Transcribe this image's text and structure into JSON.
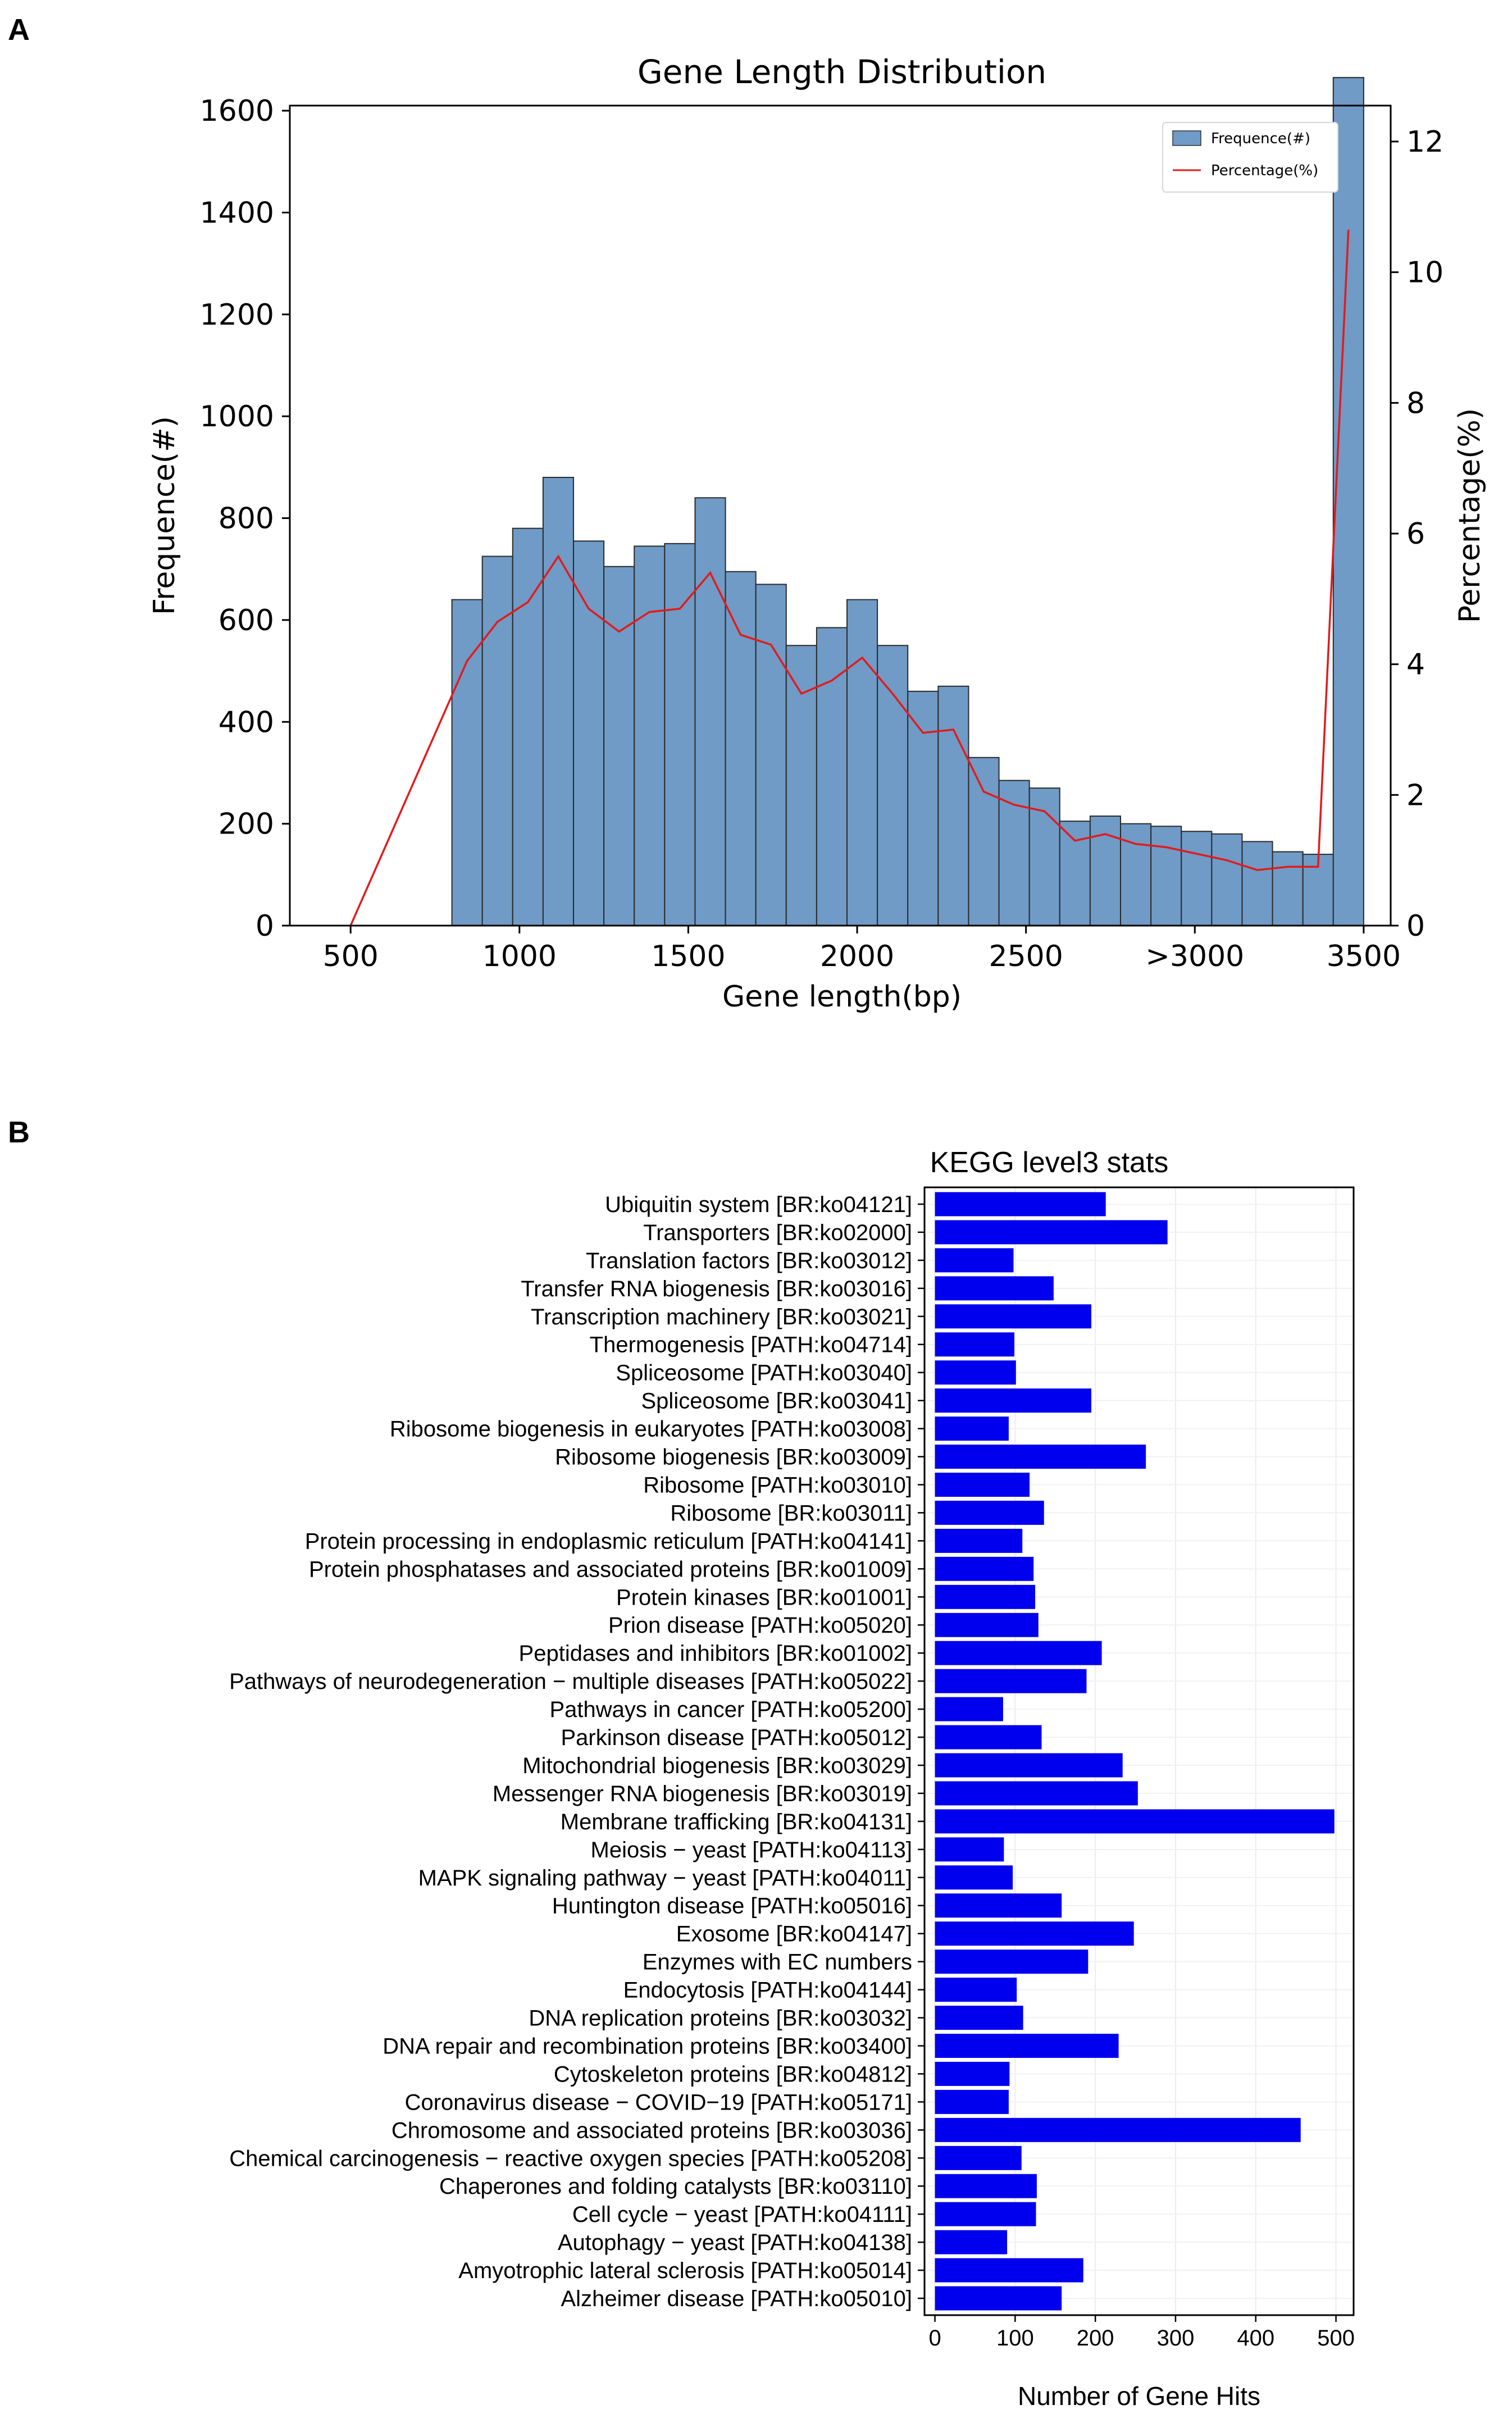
{
  "panels": {
    "a": "A",
    "b": "B"
  },
  "chart_data": [
    {
      "type": "bar",
      "title": "Gene Length Distribution",
      "xlabel": "Gene length(bp)",
      "ylabel": "Frequence(#)",
      "ylabel_right": "Percentage(%)",
      "xticks": [
        "500",
        "1000",
        "1500",
        "2000",
        "2500",
        ">3000",
        "3500"
      ],
      "xticks_at": [
        500,
        1000,
        1500,
        2000,
        2500,
        3000,
        3500
      ],
      "xlim": [
        320,
        3580
      ],
      "ylim": [
        0,
        1610
      ],
      "yticks": [
        0,
        200,
        400,
        600,
        800,
        1000,
        1200,
        1400,
        1600
      ],
      "ylim_right": [
        0,
        12.55
      ],
      "yticks_right": [
        0,
        2,
        4,
        6,
        8,
        10,
        12
      ],
      "bin_width": 90,
      "bin_starts": [
        800,
        890,
        980,
        1070,
        1160,
        1250,
        1340,
        1430,
        1520,
        1610,
        1700,
        1790,
        1880,
        1970,
        2060,
        2150,
        2240,
        2330,
        2420,
        2510,
        2600,
        2690,
        2780,
        2870,
        2960,
        3050,
        3140,
        3230,
        3320,
        3410
      ],
      "series": [
        {
          "name": "Frequence(#)",
          "color": "#6f9bc6",
          "values": [
            640,
            725,
            780,
            880,
            755,
            705,
            745,
            750,
            840,
            695,
            670,
            550,
            585,
            640,
            550,
            460,
            470,
            330,
            285,
            270,
            205,
            215,
            200,
            195,
            185,
            180,
            165,
            145,
            140,
            1665
          ]
        },
        {
          "name": "Percentage(%)",
          "color": "#e31a1c",
          "x": [
            500,
            845,
            935,
            1025,
            1115,
            1205,
            1295,
            1385,
            1475,
            1565,
            1655,
            1745,
            1835,
            1925,
            2015,
            2105,
            2195,
            2285,
            2375,
            2465,
            2555,
            2645,
            2735,
            2825,
            2915,
            3005,
            3095,
            3185,
            3275,
            3365,
            3455
          ],
          "values": [
            0,
            4.05,
            4.65,
            4.95,
            5.65,
            4.85,
            4.5,
            4.8,
            4.85,
            5.4,
            4.45,
            4.3,
            3.55,
            3.75,
            4.1,
            3.55,
            2.95,
            3.0,
            2.05,
            1.85,
            1.75,
            1.3,
            1.4,
            1.25,
            1.2,
            1.1,
            1.0,
            0.85,
            0.9,
            0.9,
            10.65
          ]
        }
      ],
      "legend": "top-right",
      "grid": false
    },
    {
      "type": "bar",
      "orientation": "horizontal",
      "title": "KEGG level3 stats",
      "xlabel": "Number of Gene Hits",
      "xlim": [
        -13,
        522
      ],
      "xticks": [
        0,
        100,
        200,
        300,
        400,
        500
      ],
      "grid": true,
      "color": "#0000ee",
      "categories": [
        "Ubiquitin system [BR:ko04121]",
        "Transporters [BR:ko02000]",
        "Translation factors [BR:ko03012]",
        "Transfer RNA biogenesis [BR:ko03016]",
        "Transcription machinery [BR:ko03021]",
        "Thermogenesis [PATH:ko04714]",
        "Spliceosome [PATH:ko03040]",
        "Spliceosome [BR:ko03041]",
        "Ribosome biogenesis in eukaryotes [PATH:ko03008]",
        "Ribosome biogenesis [BR:ko03009]",
        "Ribosome [PATH:ko03010]",
        "Ribosome [BR:ko03011]",
        "Protein processing in endoplasmic reticulum [PATH:ko04141]",
        "Protein phosphatases and associated proteins [BR:ko01009]",
        "Protein kinases [BR:ko01001]",
        "Prion disease [PATH:ko05020]",
        "Peptidases and inhibitors [BR:ko01002]",
        "Pathways of neurodegeneration − multiple diseases [PATH:ko05022]",
        "Pathways in cancer [PATH:ko05200]",
        "Parkinson disease [PATH:ko05012]",
        "Mitochondrial biogenesis [BR:ko03029]",
        "Messenger RNA biogenesis [BR:ko03019]",
        "Membrane trafficking [BR:ko04131]",
        "Meiosis − yeast [PATH:ko04113]",
        "MAPK signaling pathway − yeast [PATH:ko04011]",
        "Huntington disease [PATH:ko05016]",
        "Exosome [BR:ko04147]",
        "Enzymes with EC numbers",
        "Endocytosis [PATH:ko04144]",
        "DNA replication proteins [BR:ko03032]",
        "DNA repair and recombination proteins [BR:ko03400]",
        "Cytoskeleton proteins [BR:ko04812]",
        "Coronavirus disease − COVID−19 [PATH:ko05171]",
        "Chromosome and associated proteins [BR:ko03036]",
        "Chemical carcinogenesis − reactive oxygen species [PATH:ko05208]",
        "Chaperones and folding catalysts [BR:ko03110]",
        "Cell cycle − yeast [PATH:ko04111]",
        "Autophagy − yeast [PATH:ko04138]",
        "Amyotrophic lateral sclerosis [PATH:ko05014]",
        "Alzheimer disease [PATH:ko05010]"
      ],
      "values": [
        213,
        290,
        98,
        148,
        195,
        99,
        101,
        195,
        92,
        263,
        118,
        136,
        109,
        123,
        125,
        129,
        208,
        189,
        85,
        133,
        234,
        253,
        498,
        86,
        97,
        158,
        248,
        191,
        102,
        110,
        229,
        93,
        92,
        456,
        108,
        127,
        126,
        90,
        185,
        158
      ]
    }
  ]
}
